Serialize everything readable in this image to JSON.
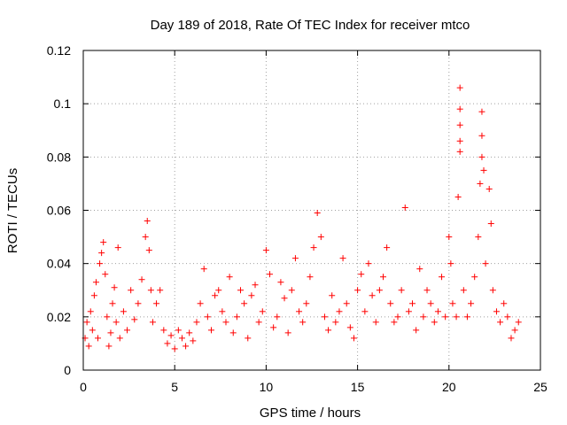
{
  "chart_data": {
    "type": "scatter",
    "title": "Day 189 of 2018, Rate Of TEC Index for receiver mtco",
    "xlabel": "GPS time / hours",
    "ylabel": "ROTI / TECUs",
    "xlim": [
      0,
      25
    ],
    "ylim": [
      0,
      0.12
    ],
    "x_ticks": [
      0,
      5,
      10,
      15,
      20,
      25
    ],
    "x_tick_labels": [
      "0",
      "5",
      "10",
      "15",
      "20",
      "25"
    ],
    "y_ticks": [
      0,
      0.02,
      0.04,
      0.06,
      0.08,
      0.1,
      0.12
    ],
    "y_tick_labels": [
      "0",
      "0.02",
      "0.04",
      "0.06",
      "0.08",
      "0.1",
      "0.12"
    ],
    "grid": true,
    "marker": "plus",
    "color": "#ff0000",
    "series": [
      {
        "name": "ROTI",
        "points": [
          [
            0.1,
            0.012
          ],
          [
            0.2,
            0.018
          ],
          [
            0.3,
            0.009
          ],
          [
            0.4,
            0.022
          ],
          [
            0.5,
            0.015
          ],
          [
            0.6,
            0.028
          ],
          [
            0.7,
            0.033
          ],
          [
            0.8,
            0.012
          ],
          [
            0.9,
            0.04
          ],
          [
            1.0,
            0.044
          ],
          [
            1.1,
            0.048
          ],
          [
            1.2,
            0.036
          ],
          [
            1.3,
            0.02
          ],
          [
            1.4,
            0.009
          ],
          [
            1.5,
            0.014
          ],
          [
            1.6,
            0.025
          ],
          [
            1.7,
            0.031
          ],
          [
            1.8,
            0.018
          ],
          [
            1.9,
            0.046
          ],
          [
            2.0,
            0.012
          ],
          [
            2.2,
            0.022
          ],
          [
            2.4,
            0.015
          ],
          [
            2.6,
            0.03
          ],
          [
            2.8,
            0.019
          ],
          [
            3.0,
            0.025
          ],
          [
            3.2,
            0.034
          ],
          [
            3.4,
            0.05
          ],
          [
            3.5,
            0.056
          ],
          [
            3.6,
            0.045
          ],
          [
            3.7,
            0.03
          ],
          [
            3.8,
            0.018
          ],
          [
            4.0,
            0.025
          ],
          [
            4.2,
            0.03
          ],
          [
            4.4,
            0.015
          ],
          [
            4.6,
            0.01
          ],
          [
            4.8,
            0.013
          ],
          [
            5.0,
            0.008
          ],
          [
            5.2,
            0.015
          ],
          [
            5.4,
            0.012
          ],
          [
            5.6,
            0.009
          ],
          [
            5.8,
            0.014
          ],
          [
            6.0,
            0.011
          ],
          [
            6.2,
            0.018
          ],
          [
            6.4,
            0.025
          ],
          [
            6.6,
            0.038
          ],
          [
            6.8,
            0.02
          ],
          [
            7.0,
            0.015
          ],
          [
            7.2,
            0.028
          ],
          [
            7.4,
            0.03
          ],
          [
            7.6,
            0.022
          ],
          [
            7.8,
            0.018
          ],
          [
            8.0,
            0.035
          ],
          [
            8.2,
            0.014
          ],
          [
            8.4,
            0.02
          ],
          [
            8.6,
            0.03
          ],
          [
            8.8,
            0.025
          ],
          [
            9.0,
            0.012
          ],
          [
            9.2,
            0.028
          ],
          [
            9.4,
            0.032
          ],
          [
            9.6,
            0.018
          ],
          [
            9.8,
            0.022
          ],
          [
            10.0,
            0.045
          ],
          [
            10.2,
            0.036
          ],
          [
            10.4,
            0.016
          ],
          [
            10.6,
            0.02
          ],
          [
            10.8,
            0.033
          ],
          [
            11.0,
            0.027
          ],
          [
            11.2,
            0.014
          ],
          [
            11.4,
            0.03
          ],
          [
            11.6,
            0.042
          ],
          [
            11.8,
            0.022
          ],
          [
            12.0,
            0.018
          ],
          [
            12.2,
            0.025
          ],
          [
            12.4,
            0.035
          ],
          [
            12.6,
            0.046
          ],
          [
            12.8,
            0.059
          ],
          [
            13.0,
            0.05
          ],
          [
            13.2,
            0.02
          ],
          [
            13.4,
            0.015
          ],
          [
            13.6,
            0.028
          ],
          [
            13.8,
            0.018
          ],
          [
            14.0,
            0.022
          ],
          [
            14.2,
            0.042
          ],
          [
            14.4,
            0.025
          ],
          [
            14.6,
            0.016
          ],
          [
            14.8,
            0.012
          ],
          [
            15.0,
            0.03
          ],
          [
            15.2,
            0.036
          ],
          [
            15.4,
            0.022
          ],
          [
            15.6,
            0.04
          ],
          [
            15.8,
            0.028
          ],
          [
            16.0,
            0.018
          ],
          [
            16.2,
            0.03
          ],
          [
            16.4,
            0.035
          ],
          [
            16.6,
            0.046
          ],
          [
            16.8,
            0.025
          ],
          [
            17.0,
            0.018
          ],
          [
            17.2,
            0.02
          ],
          [
            17.4,
            0.03
          ],
          [
            17.6,
            0.061
          ],
          [
            17.8,
            0.022
          ],
          [
            18.0,
            0.025
          ],
          [
            18.2,
            0.015
          ],
          [
            18.4,
            0.038
          ],
          [
            18.6,
            0.02
          ],
          [
            18.8,
            0.03
          ],
          [
            19.0,
            0.025
          ],
          [
            19.2,
            0.018
          ],
          [
            19.4,
            0.022
          ],
          [
            19.6,
            0.035
          ],
          [
            19.8,
            0.02
          ],
          [
            20.0,
            0.05
          ],
          [
            20.1,
            0.04
          ],
          [
            20.2,
            0.025
          ],
          [
            20.4,
            0.02
          ],
          [
            20.5,
            0.065
          ],
          [
            20.6,
            0.106
          ],
          [
            20.6,
            0.098
          ],
          [
            20.6,
            0.092
          ],
          [
            20.6,
            0.086
          ],
          [
            20.6,
            0.082
          ],
          [
            20.8,
            0.03
          ],
          [
            21.0,
            0.02
          ],
          [
            21.2,
            0.025
          ],
          [
            21.4,
            0.035
          ],
          [
            21.6,
            0.05
          ],
          [
            21.7,
            0.07
          ],
          [
            21.8,
            0.097
          ],
          [
            21.8,
            0.088
          ],
          [
            21.8,
            0.08
          ],
          [
            21.9,
            0.075
          ],
          [
            22.0,
            0.04
          ],
          [
            22.2,
            0.068
          ],
          [
            22.3,
            0.055
          ],
          [
            22.4,
            0.03
          ],
          [
            22.6,
            0.022
          ],
          [
            22.8,
            0.018
          ],
          [
            23.0,
            0.025
          ],
          [
            23.2,
            0.02
          ],
          [
            23.4,
            0.012
          ],
          [
            23.6,
            0.015
          ],
          [
            23.8,
            0.018
          ]
        ]
      }
    ]
  }
}
